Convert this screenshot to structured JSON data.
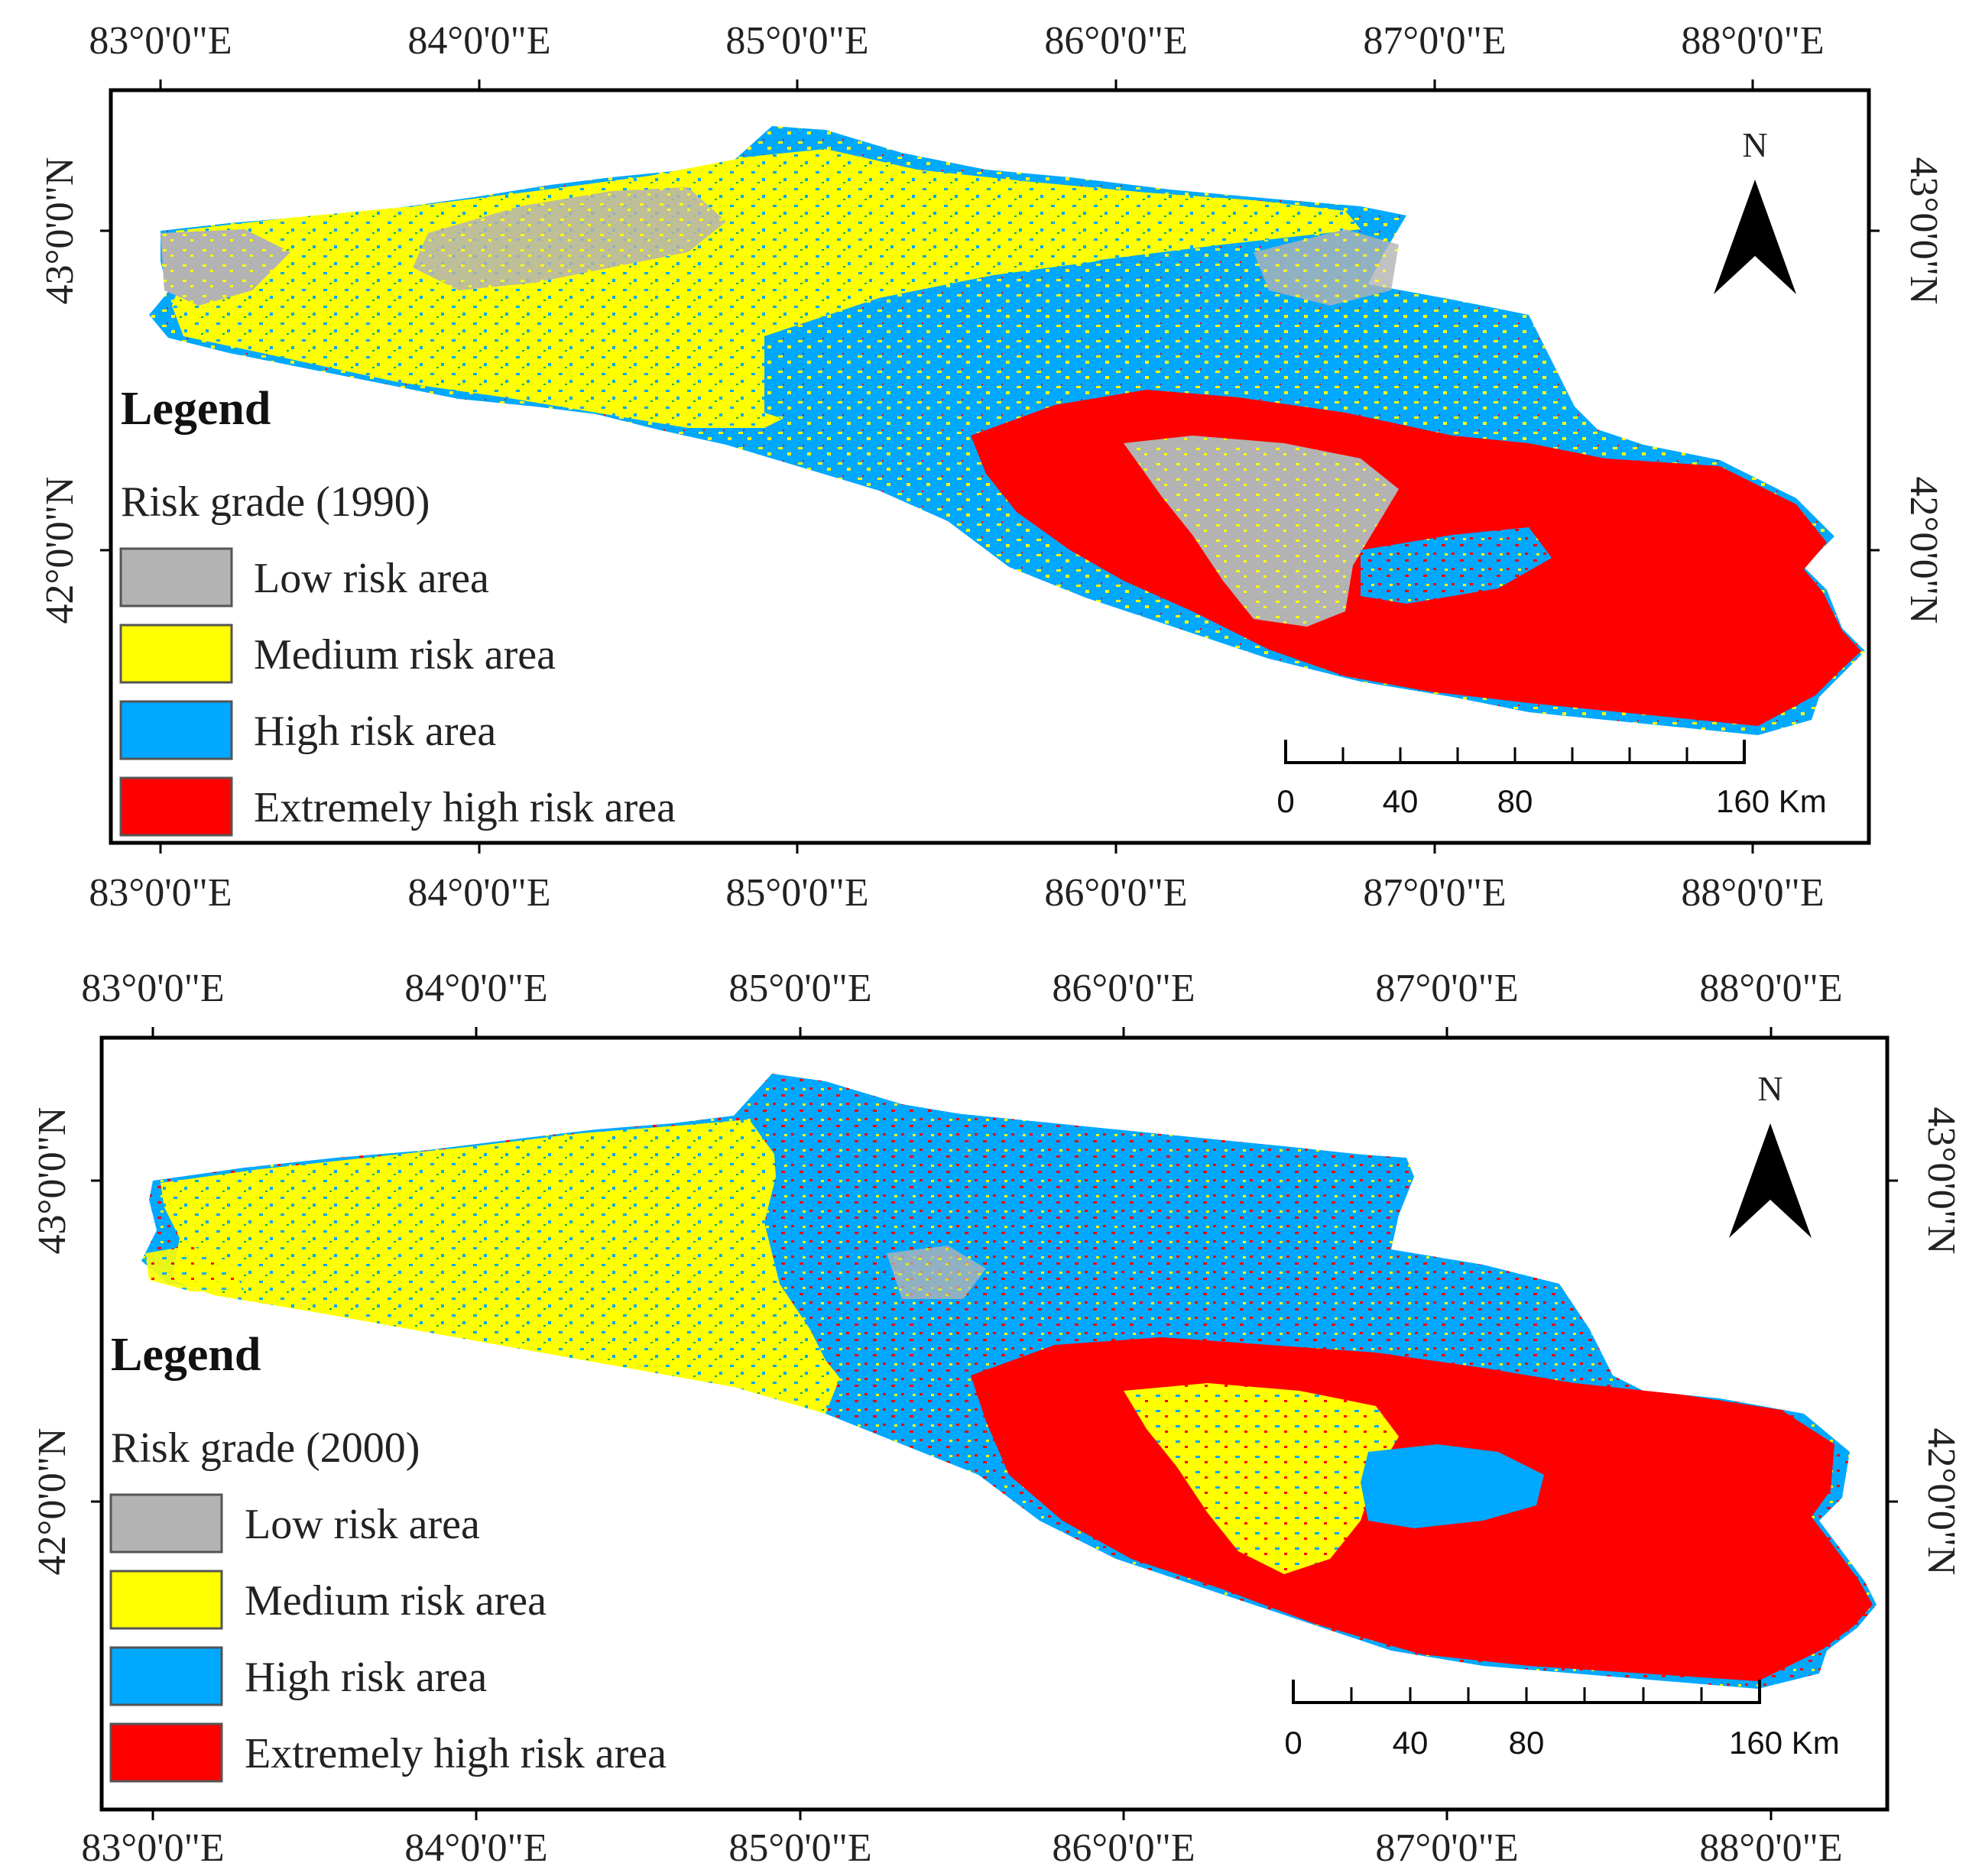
{
  "maps": [
    {
      "year_label": "Risk grade (1990)",
      "legend_title": "Legend",
      "top_ticks": [
        "83°0'0\"E",
        "84°0'0\"E",
        "85°0'0\"E",
        "86°0'0\"E",
        "87°0'0\"E",
        "88°0'0\"E"
      ],
      "bottom_ticks": [
        "83°0'0\"E",
        "84°0'0\"E",
        "85°0'0\"E",
        "86°0'0\"E",
        "87°0'0\"E",
        "88°0'0\"E"
      ],
      "left_ticks": [
        "43°0'0\"N",
        "42°0'0\"N"
      ],
      "right_ticks": [
        "43°0'0\"N",
        "42°0'0\"N"
      ],
      "legend_items": [
        {
          "label": "Low risk area",
          "color": "#b3b3b3"
        },
        {
          "label": "Medium risk area",
          "color": "#ffff00"
        },
        {
          "label": "High risk area",
          "color": "#00a8ff"
        },
        {
          "label": "Extremely high risk area",
          "color": "#ff0000"
        }
      ],
      "north_label": "N",
      "scale_labels": [
        "0",
        "40",
        "80",
        "160 Km"
      ]
    },
    {
      "year_label": "Risk grade (2000)",
      "legend_title": "Legend",
      "top_ticks": [
        "83°0'0\"E",
        "84°0'0\"E",
        "85°0'0\"E",
        "86°0'0\"E",
        "87°0'0\"E",
        "88°0'0\"E"
      ],
      "bottom_ticks": [
        "83°0'0\"E",
        "84°0'0\"E",
        "85°0'0\"E",
        "86°0'0\"E",
        "87°0'0\"E",
        "88°0'0\"E"
      ],
      "left_ticks": [
        "43°0'0\"N",
        "42°0'0\"N"
      ],
      "right_ticks": [
        "43°0'0\"N",
        "42°0'0\"N"
      ],
      "legend_items": [
        {
          "label": "Low risk area",
          "color": "#b3b3b3"
        },
        {
          "label": "Medium risk area",
          "color": "#ffff00"
        },
        {
          "label": "High risk area",
          "color": "#00a8ff"
        },
        {
          "label": "Extremely high risk area",
          "color": "#ff0000"
        }
      ],
      "north_label": "N",
      "scale_labels": [
        "0",
        "40",
        "80",
        "160 Km"
      ]
    }
  ]
}
